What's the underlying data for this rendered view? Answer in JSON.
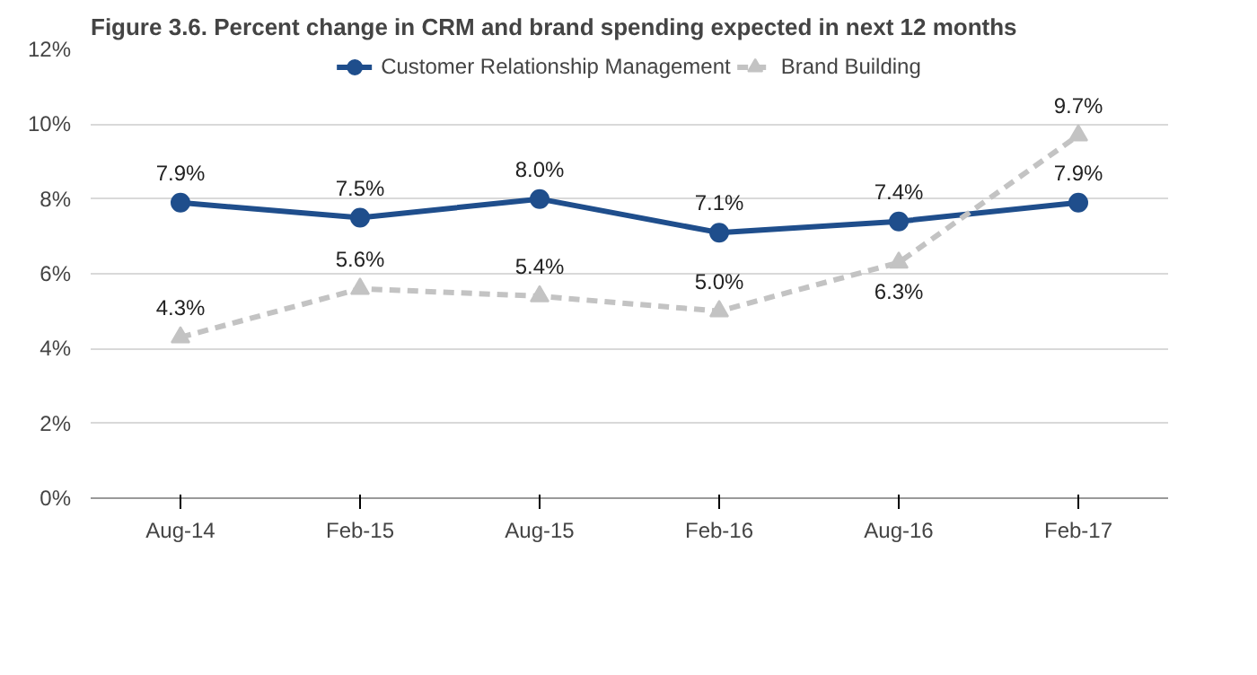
{
  "chart_data": {
    "type": "line",
    "title": "Figure 3.6.  Percent change in CRM and brand spending expected in next 12 months",
    "categories": [
      "Aug-14",
      "Feb-15",
      "Aug-15",
      "Feb-16",
      "Aug-16",
      "Feb-17"
    ],
    "series": [
      {
        "name": "Customer Relationship Management",
        "color": "#1f4e8c",
        "marker": "circle",
        "line_style": "solid",
        "values": [
          7.9,
          7.5,
          8.0,
          7.1,
          7.4,
          7.9
        ],
        "value_labels": [
          "7.9%",
          "7.5%",
          "8.0%",
          "7.1%",
          "7.4%",
          "7.9%"
        ]
      },
      {
        "name": "Brand Building",
        "color": "#c3c3c3",
        "marker": "triangle",
        "line_style": "dashed",
        "values": [
          4.3,
          5.6,
          5.4,
          5.0,
          6.3,
          9.7
        ],
        "value_labels": [
          "4.3%",
          "5.6%",
          "5.4%",
          "5.0%",
          "6.3%",
          "9.7%"
        ]
      }
    ],
    "ylim": [
      0,
      12
    ],
    "yticks": [
      {
        "value": 0,
        "label": "0%"
      },
      {
        "value": 2,
        "label": "2%"
      },
      {
        "value": 4,
        "label": "4%"
      },
      {
        "value": 6,
        "label": "6%"
      },
      {
        "value": 8,
        "label": "8%"
      },
      {
        "value": 10,
        "label": "10%"
      },
      {
        "value": 12,
        "label": "12%"
      }
    ],
    "grid": "y",
    "legend": "top"
  }
}
